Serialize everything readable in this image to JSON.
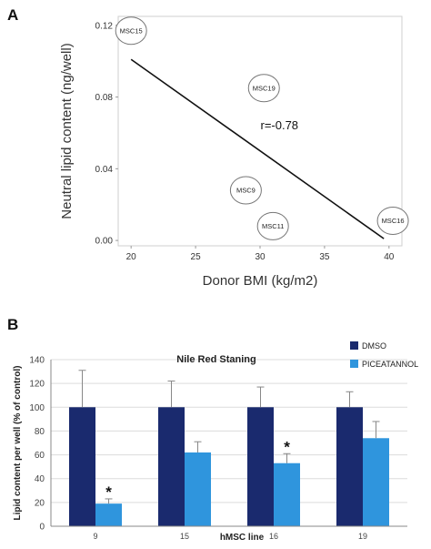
{
  "chart_data": [
    {
      "type": "scatter",
      "panel": "A",
      "xlabel": "Donor BMI (kg/m2)",
      "ylabel": "Neutral lipid content (ng/well)",
      "xlim": [
        19,
        41
      ],
      "ylim": [
        -0.003,
        0.125
      ],
      "xticks": [
        20,
        25,
        30,
        35,
        40
      ],
      "yticks": [
        0.0,
        0.04,
        0.08,
        0.12
      ],
      "ytick_labels": [
        "0.00",
        "0.04",
        "0.08",
        "0.12"
      ],
      "points": [
        {
          "label": "MSC15",
          "x": 20.0,
          "y": 0.117
        },
        {
          "label": "MSC19",
          "x": 30.3,
          "y": 0.085
        },
        {
          "label": "MSC9",
          "x": 28.9,
          "y": 0.028
        },
        {
          "label": "MSC11",
          "x": 31.0,
          "y": 0.008
        },
        {
          "label": "MSC16",
          "x": 40.3,
          "y": 0.011
        }
      ],
      "trendline": {
        "x": [
          20.0,
          39.6
        ],
        "y": [
          0.101,
          0.001
        ]
      },
      "annotation": "r=-0.78",
      "annotation_pos": {
        "x": 31.5,
        "y": 0.064
      },
      "grid": false
    },
    {
      "type": "bar",
      "panel": "B",
      "title": "Nile Red Staning",
      "xlabel": "hMSC line",
      "ylabel": "Lipid content per well (% of control)",
      "ylim": [
        0,
        140
      ],
      "yticks": [
        0,
        20,
        40,
        60,
        80,
        100,
        120,
        140
      ],
      "categories": [
        "9",
        "15",
        "16",
        "19"
      ],
      "series": [
        {
          "name": "DMSO",
          "color": "#1a2a6e",
          "values": [
            100,
            100,
            100,
            100
          ],
          "errors": [
            31,
            22,
            17,
            13
          ]
        },
        {
          "name": "PICEATANNOL",
          "color": "#2f95dd",
          "values": [
            19,
            62,
            53,
            74
          ],
          "errors": [
            4,
            9,
            8,
            14
          ]
        }
      ],
      "significance": [
        {
          "category": "9",
          "series": "PICEATANNOL",
          "mark": "*"
        },
        {
          "category": "16",
          "series": "PICEATANNOL",
          "mark": "*"
        }
      ],
      "legend_position": "top-right",
      "grid": true
    }
  ]
}
